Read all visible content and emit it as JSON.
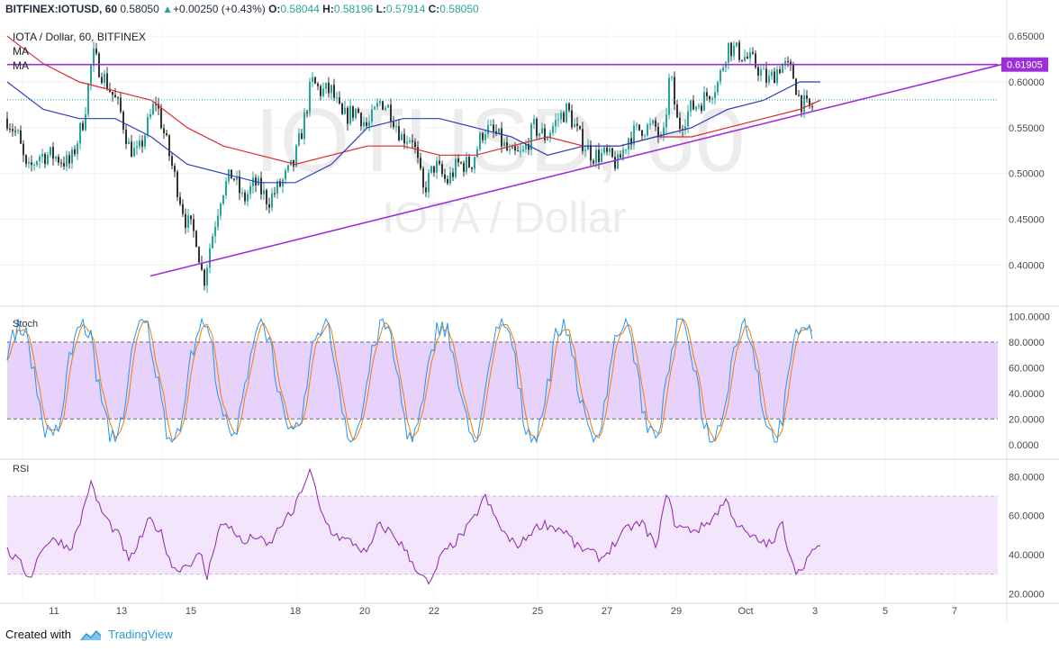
{
  "header": {
    "symbol": "BITFINEX:IOTUSD, 60",
    "last": "0.58050",
    "change": "+0.00250 (+0.43%)",
    "o_label": "O:",
    "o": "0.58044",
    "h_label": "H:",
    "h": "0.58196",
    "l_label": "L:",
    "l": "0.57914",
    "c_label": "C:",
    "c": "0.58050"
  },
  "title": "IOTA / Dollar, 60, BITFINEX",
  "ma_labels": [
    "MA",
    "MA"
  ],
  "watermark": {
    "line1": "IOTUSD, 60",
    "line2": "IOTA / Dollar"
  },
  "price_axis": [
    "0.65000",
    "0.60000",
    "0.55000",
    "0.50000",
    "0.45000",
    "0.40000"
  ],
  "price_tag": "0.61905",
  "stoch_label": "Stoch",
  "stoch_axis": [
    "100.0000",
    "80.0000",
    "60.0000",
    "40.0000",
    "20.0000",
    "0.0000"
  ],
  "rsi_label": "RSI",
  "rsi_axis": [
    "80.0000",
    "60.0000",
    "40.0000",
    "20.0000"
  ],
  "x_axis": [
    "11",
    "13",
    "15",
    "18",
    "20",
    "22",
    "25",
    "27",
    "29",
    "Oct",
    "3",
    "5",
    "7"
  ],
  "footer": {
    "created": "Created with",
    "brand": "TradingView"
  },
  "colors": {
    "up": "#26a69a",
    "down": "#333333",
    "ma_fast": "#2f3fbf",
    "ma_slow": "#e0282e",
    "trendline": "#9b30d9",
    "stoch_band": "#e6d2fb",
    "rsi_band": "#f3e6fc",
    "stoch_k": "#2196f3",
    "stoch_d": "#f57c00",
    "rsi_line": "#8e24aa"
  },
  "chart_data": {
    "type": "candlestick",
    "price": {
      "ylim": [
        0.36,
        0.66
      ],
      "close_path": [
        [
          0,
          0.56
        ],
        [
          12,
          0.54
        ],
        [
          22,
          0.5
        ],
        [
          35,
          0.52
        ],
        [
          50,
          0.52
        ],
        [
          70,
          0.51
        ],
        [
          85,
          0.56
        ],
        [
          95,
          0.63
        ],
        [
          110,
          0.6
        ],
        [
          125,
          0.57
        ],
        [
          135,
          0.53
        ],
        [
          145,
          0.52
        ],
        [
          155,
          0.55
        ],
        [
          165,
          0.58
        ],
        [
          175,
          0.54
        ],
        [
          185,
          0.5
        ],
        [
          198,
          0.45
        ],
        [
          210,
          0.43
        ],
        [
          218,
          0.38
        ],
        [
          225,
          0.42
        ],
        [
          238,
          0.48
        ],
        [
          250,
          0.5
        ],
        [
          262,
          0.47
        ],
        [
          275,
          0.49
        ],
        [
          290,
          0.47
        ],
        [
          305,
          0.49
        ],
        [
          318,
          0.51
        ],
        [
          328,
          0.55
        ],
        [
          338,
          0.6
        ],
        [
          348,
          0.59
        ],
        [
          360,
          0.59
        ],
        [
          372,
          0.56
        ],
        [
          388,
          0.57
        ],
        [
          400,
          0.55
        ],
        [
          415,
          0.58
        ],
        [
          425,
          0.57
        ],
        [
          438,
          0.54
        ],
        [
          450,
          0.54
        ],
        [
          462,
          0.48
        ],
        [
          475,
          0.51
        ],
        [
          488,
          0.49
        ],
        [
          500,
          0.51
        ],
        [
          515,
          0.51
        ],
        [
          530,
          0.55
        ],
        [
          545,
          0.54
        ],
        [
          558,
          0.52
        ],
        [
          572,
          0.52
        ],
        [
          585,
          0.55
        ],
        [
          598,
          0.54
        ],
        [
          612,
          0.56
        ],
        [
          622,
          0.57
        ],
        [
          635,
          0.54
        ],
        [
          650,
          0.52
        ],
        [
          665,
          0.52
        ],
        [
          678,
          0.51
        ],
        [
          690,
          0.54
        ],
        [
          705,
          0.55
        ],
        [
          720,
          0.55
        ],
        [
          728,
          0.53
        ],
        [
          736,
          0.61
        ],
        [
          745,
          0.55
        ],
        [
          758,
          0.57
        ],
        [
          772,
          0.58
        ],
        [
          790,
          0.6
        ],
        [
          800,
          0.64
        ],
        [
          815,
          0.63
        ],
        [
          830,
          0.62
        ],
        [
          845,
          0.6
        ],
        [
          860,
          0.62
        ],
        [
          872,
          0.61
        ],
        [
          880,
          0.58
        ],
        [
          890,
          0.57
        ],
        [
          903,
          0.58
        ]
      ],
      "ma_fast_path": [
        [
          0,
          0.6
        ],
        [
          40,
          0.57
        ],
        [
          80,
          0.56
        ],
        [
          120,
          0.56
        ],
        [
          160,
          0.54
        ],
        [
          200,
          0.51
        ],
        [
          240,
          0.5
        ],
        [
          280,
          0.49
        ],
        [
          320,
          0.49
        ],
        [
          360,
          0.51
        ],
        [
          400,
          0.55
        ],
        [
          440,
          0.56
        ],
        [
          480,
          0.56
        ],
        [
          520,
          0.55
        ],
        [
          560,
          0.54
        ],
        [
          600,
          0.52
        ],
        [
          640,
          0.53
        ],
        [
          680,
          0.53
        ],
        [
          720,
          0.54
        ],
        [
          760,
          0.55
        ],
        [
          800,
          0.57
        ],
        [
          840,
          0.58
        ],
        [
          880,
          0.6
        ],
        [
          903,
          0.6
        ]
      ],
      "ma_slow_path": [
        [
          0,
          0.65
        ],
        [
          40,
          0.62
        ],
        [
          80,
          0.6
        ],
        [
          120,
          0.59
        ],
        [
          160,
          0.58
        ],
        [
          200,
          0.55
        ],
        [
          240,
          0.53
        ],
        [
          280,
          0.52
        ],
        [
          320,
          0.51
        ],
        [
          360,
          0.52
        ],
        [
          400,
          0.53
        ],
        [
          440,
          0.53
        ],
        [
          480,
          0.52
        ],
        [
          520,
          0.52
        ],
        [
          560,
          0.53
        ],
        [
          600,
          0.54
        ],
        [
          640,
          0.53
        ],
        [
          680,
          0.53
        ],
        [
          720,
          0.54
        ],
        [
          760,
          0.54
        ],
        [
          800,
          0.55
        ],
        [
          840,
          0.56
        ],
        [
          880,
          0.57
        ],
        [
          903,
          0.58
        ]
      ],
      "resistance": 0.619,
      "trendline": [
        [
          167,
          0.388
        ],
        [
          1112,
          0.619
        ]
      ],
      "last_close": 0.5805
    },
    "stoch": {
      "ylim": [
        0,
        100
      ],
      "upper_band": 80,
      "lower_band": 20
    },
    "rsi": {
      "ylim": [
        20,
        80
      ],
      "upper_band": 70,
      "lower_band": 30,
      "path": [
        [
          0,
          42
        ],
        [
          15,
          35
        ],
        [
          25,
          28
        ],
        [
          40,
          45
        ],
        [
          55,
          48
        ],
        [
          70,
          43
        ],
        [
          80,
          55
        ],
        [
          92,
          77
        ],
        [
          105,
          62
        ],
        [
          115,
          55
        ],
        [
          125,
          49
        ],
        [
          135,
          36
        ],
        [
          148,
          48
        ],
        [
          158,
          58
        ],
        [
          170,
          52
        ],
        [
          185,
          32
        ],
        [
          200,
          35
        ],
        [
          215,
          40
        ],
        [
          222,
          28
        ],
        [
          235,
          55
        ],
        [
          250,
          54
        ],
        [
          262,
          45
        ],
        [
          275,
          50
        ],
        [
          290,
          44
        ],
        [
          305,
          56
        ],
        [
          318,
          62
        ],
        [
          328,
          75
        ],
        [
          337,
          83
        ],
        [
          348,
          62
        ],
        [
          360,
          52
        ],
        [
          372,
          48
        ],
        [
          385,
          46
        ],
        [
          400,
          40
        ],
        [
          412,
          55
        ],
        [
          425,
          52
        ],
        [
          438,
          45
        ],
        [
          450,
          36
        ],
        [
          462,
          28
        ],
        [
          470,
          24
        ],
        [
          480,
          38
        ],
        [
          492,
          44
        ],
        [
          505,
          50
        ],
        [
          518,
          58
        ],
        [
          530,
          70
        ],
        [
          545,
          56
        ],
        [
          558,
          47
        ],
        [
          570,
          45
        ],
        [
          582,
          52
        ],
        [
          595,
          56
        ],
        [
          608,
          54
        ],
        [
          620,
          52
        ],
        [
          632,
          44
        ],
        [
          645,
          42
        ],
        [
          660,
          38
        ],
        [
          675,
          46
        ],
        [
          690,
          54
        ],
        [
          705,
          56
        ],
        [
          715,
          49
        ],
        [
          722,
          42
        ],
        [
          731,
          74
        ],
        [
          742,
          55
        ],
        [
          755,
          53
        ],
        [
          768,
          53
        ],
        [
          782,
          58
        ],
        [
          798,
          68
        ],
        [
          810,
          56
        ],
        [
          822,
          50
        ],
        [
          835,
          47
        ],
        [
          850,
          45
        ],
        [
          860,
          57
        ],
        [
          868,
          42
        ],
        [
          878,
          30
        ],
        [
          888,
          38
        ],
        [
          898,
          42
        ],
        [
          903,
          46
        ]
      ]
    },
    "x_ticks": [
      "11",
      "13",
      "15",
      "18",
      "20",
      "22",
      "25",
      "27",
      "29",
      "Oct",
      "3",
      "5",
      "7"
    ]
  }
}
